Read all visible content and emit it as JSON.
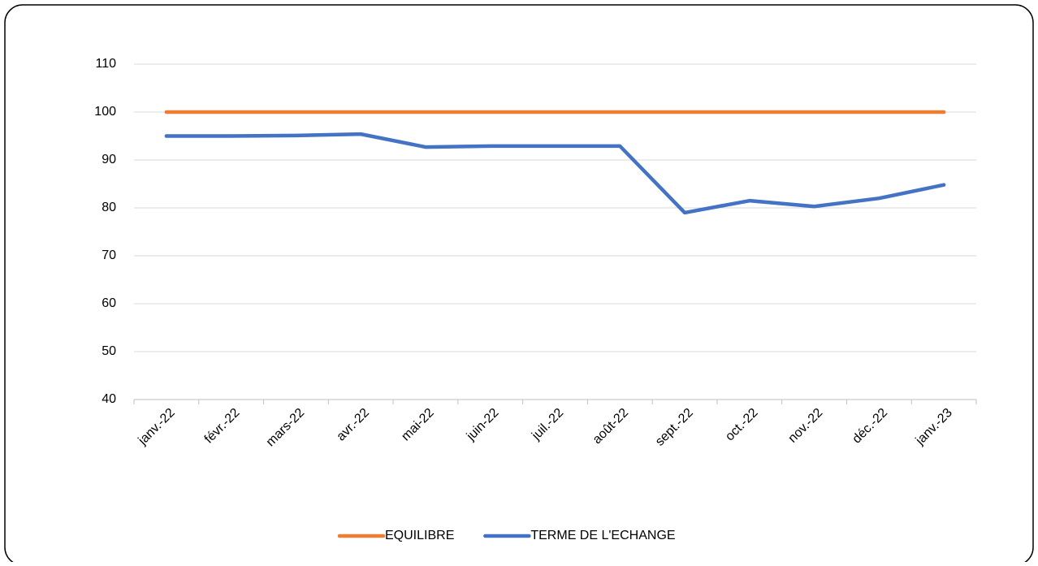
{
  "chart_data": {
    "type": "line",
    "categories": [
      "janv.-22",
      "févr.-22",
      "mars-22",
      "avr.-22",
      "mai-22",
      "juin-22",
      "juil.-22",
      "août-22",
      "sept.-22",
      "oct.-22",
      "nov.-22",
      "déc.-22",
      "janv.-23"
    ],
    "series": [
      {
        "name": "EQUILIBRE",
        "color": "#ed7d31",
        "values": [
          100,
          100,
          100,
          100,
          100,
          100,
          100,
          100,
          100,
          100,
          100,
          100,
          100
        ]
      },
      {
        "name": "TERME DE L'ECHANGE",
        "color": "#4472c4",
        "values": [
          95,
          95,
          95.1,
          95.4,
          92.7,
          92.9,
          92.9,
          92.9,
          79,
          81.5,
          80.3,
          82,
          84.8
        ]
      }
    ],
    "ylim": [
      40,
      110
    ],
    "yticks": [
      40,
      50,
      60,
      70,
      80,
      90,
      100,
      110
    ],
    "grid": true,
    "legend": "bottom"
  }
}
